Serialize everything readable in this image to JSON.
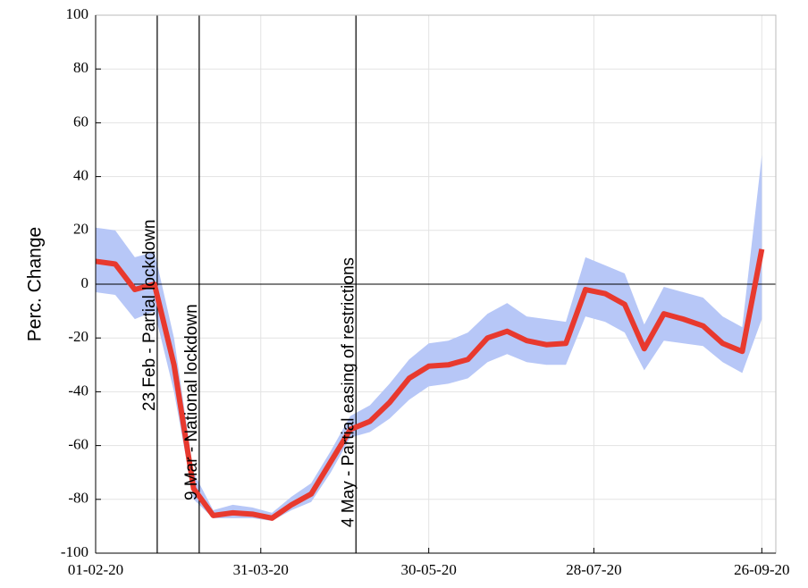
{
  "chart_data": {
    "type": "line",
    "ylabel": "Perc. Change",
    "x": [
      "2020-02-01",
      "2020-02-08",
      "2020-02-15",
      "2020-02-22",
      "2020-02-29",
      "2020-03-07",
      "2020-03-14",
      "2020-03-21",
      "2020-03-28",
      "2020-04-04",
      "2020-04-11",
      "2020-04-18",
      "2020-04-25",
      "2020-05-02",
      "2020-05-09",
      "2020-05-16",
      "2020-05-23",
      "2020-05-30",
      "2020-06-06",
      "2020-06-13",
      "2020-06-20",
      "2020-06-27",
      "2020-07-04",
      "2020-07-11",
      "2020-07-18",
      "2020-07-25",
      "2020-08-01",
      "2020-08-08",
      "2020-08-15",
      "2020-08-22",
      "2020-08-29",
      "2020-09-05",
      "2020-09-12",
      "2020-09-19",
      "2020-09-26"
    ],
    "values": [
      8.5,
      7.5,
      -2,
      0,
      -30,
      -76,
      -86,
      -85,
      -85.5,
      -87,
      -82,
      -78,
      -66,
      -54,
      -51,
      -44,
      -35,
      -30.5,
      -30,
      -28,
      -20,
      -17.5,
      -21,
      -22.5,
      -22,
      -2,
      -3.5,
      -7.5,
      -24,
      -11,
      -13,
      -15.5,
      -22,
      -25,
      13
    ],
    "upper": [
      21,
      20,
      10,
      12,
      -20,
      -70,
      -84,
      -82,
      -83,
      -85,
      -79,
      -74,
      -62,
      -49,
      -45,
      -37,
      -28,
      -22,
      -21,
      -18,
      -11,
      -7,
      -12,
      -13,
      -14,
      10,
      7,
      4,
      -15,
      -1,
      -3,
      -5,
      -12,
      -16,
      48
    ],
    "lower": [
      -3,
      -4,
      -13,
      -10,
      -40,
      -80,
      -87,
      -87,
      -87,
      -88,
      -84,
      -81,
      -70,
      -57,
      -55,
      -50,
      -43,
      -38,
      -37,
      -35,
      -29,
      -26,
      -29,
      -30,
      -30,
      -12,
      -14,
      -18,
      -32,
      -21,
      -22,
      -23,
      -29,
      -33,
      -13
    ],
    "color": "#e8392e",
    "band_color": "#b7c7f7",
    "xlim": [
      "2020-02-01",
      "2020-10-01"
    ],
    "xticks": [
      {
        "value": "2020-02-01",
        "label": "01-02-20"
      },
      {
        "value": "2020-03-31",
        "label": "31-03-20"
      },
      {
        "value": "2020-05-30",
        "label": "30-05-20"
      },
      {
        "value": "2020-07-28",
        "label": "28-07-20"
      },
      {
        "value": "2020-09-26",
        "label": "26-09-20"
      }
    ],
    "ylim": [
      -100,
      100
    ],
    "yticks": [
      -100,
      -80,
      -60,
      -40,
      -20,
      0,
      20,
      40,
      60,
      80,
      100
    ],
    "grid": true,
    "annotations": [
      {
        "text": "23 Feb - Partial lockdown",
        "x": "2020-02-23"
      },
      {
        "text": "9 Mar - National lockdown",
        "x": "2020-03-09"
      },
      {
        "text": "4 May - Partial easing of restrictions",
        "x": "2020-05-04"
      }
    ]
  }
}
